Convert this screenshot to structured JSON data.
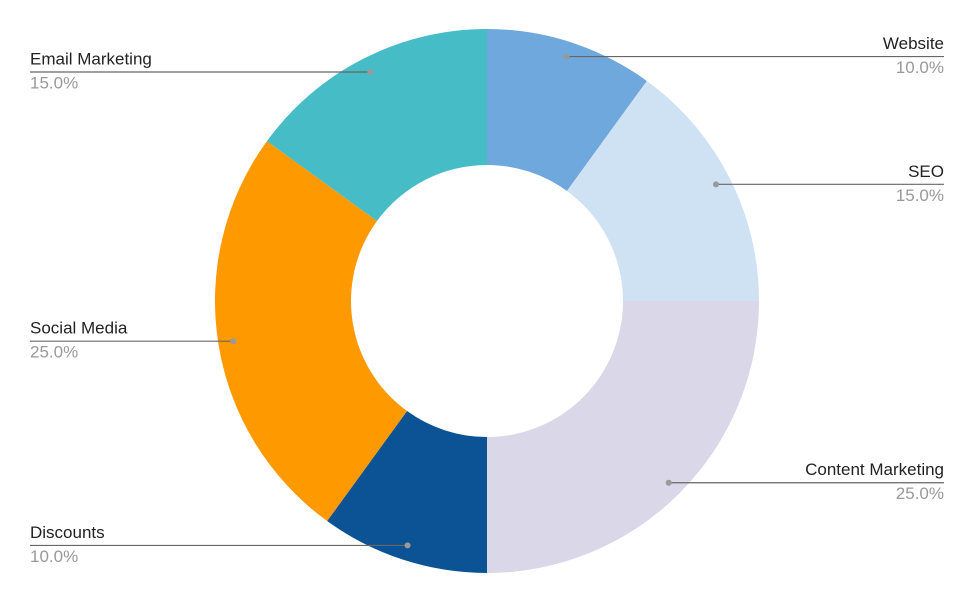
{
  "chart_data": {
    "type": "donut",
    "categories": [
      "Website",
      "SEO",
      "Content Marketing",
      "Discounts",
      "Social Media",
      "Email Marketing"
    ],
    "values": [
      10,
      15,
      25,
      10,
      25,
      15
    ],
    "value_labels": [
      "10.0%",
      "15.0%",
      "25.0%",
      "10.0%",
      "25.0%",
      "15.0%"
    ],
    "colors": [
      "#6fa8dc",
      "#cfe2f3",
      "#d9d7e8",
      "#0b5394",
      "#ff9900",
      "#46bdc6"
    ]
  }
}
